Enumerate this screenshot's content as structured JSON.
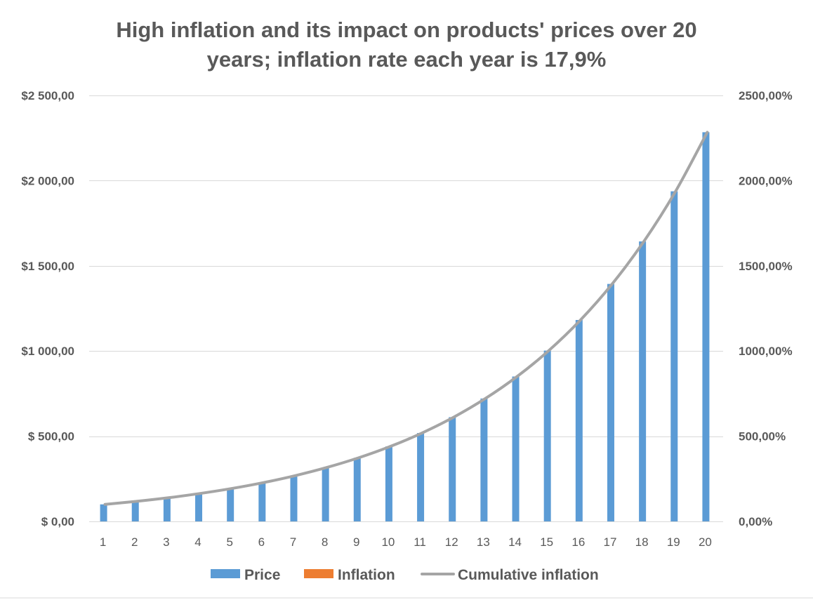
{
  "colors": {
    "price": "#5b9bd5",
    "inflation": "#ed7d31",
    "cumulative": "#a5a5a5",
    "grid": "#d9d9d9",
    "text": "#595959"
  },
  "chart_data": {
    "type": "bar",
    "title_lines": [
      "High inflation and its impact on products' prices over 20",
      "years; inflation rate each year is 17,9%"
    ],
    "categories": [
      "1",
      "2",
      "3",
      "4",
      "5",
      "6",
      "7",
      "8",
      "9",
      "10",
      "11",
      "12",
      "13",
      "14",
      "15",
      "16",
      "17",
      "18",
      "19",
      "20"
    ],
    "series": [
      {
        "name": "Price",
        "type": "bar",
        "axis": "left",
        "values": [
          100,
          117.9,
          139,
          163.9,
          193.2,
          227.8,
          268.6,
          316.7,
          373.3,
          440.1,
          518.9,
          611.8,
          721.3,
          850.4,
          1002.6,
          1182.1,
          1393.7,
          1643.2,
          1937.3,
          2284.1
        ]
      },
      {
        "name": "Inflation",
        "type": "bar",
        "axis": "left",
        "values": [
          0,
          0,
          0,
          0,
          0,
          0,
          0,
          0,
          0,
          0,
          0,
          0,
          0,
          0,
          0,
          0,
          0,
          0,
          0,
          0
        ]
      },
      {
        "name": "Cumulative inflation",
        "type": "line",
        "axis": "right",
        "values": [
          100,
          117.9,
          139,
          163.9,
          193.2,
          227.8,
          268.6,
          316.7,
          373.3,
          440.1,
          518.9,
          611.8,
          721.3,
          850.4,
          1002.6,
          1182.1,
          1393.7,
          1643.2,
          1937.3,
          2284.1
        ]
      }
    ],
    "y_left": {
      "range": [
        0,
        2500
      ],
      "ticks": [
        0,
        500,
        1000,
        1500,
        2000,
        2500
      ],
      "tick_labels": [
        "$ 0,00",
        "$ 500,00",
        "$1 000,00",
        "$1 500,00",
        "$2 000,00",
        "$2 500,00"
      ]
    },
    "y_right": {
      "range": [
        0,
        2500
      ],
      "ticks": [
        0,
        500,
        1000,
        1500,
        2000,
        2500
      ],
      "tick_labels": [
        "0,00%",
        "500,00%",
        "1000,00%",
        "1500,00%",
        "2000,00%",
        "2500,00%"
      ]
    },
    "grid": true,
    "legend": "bottom"
  }
}
